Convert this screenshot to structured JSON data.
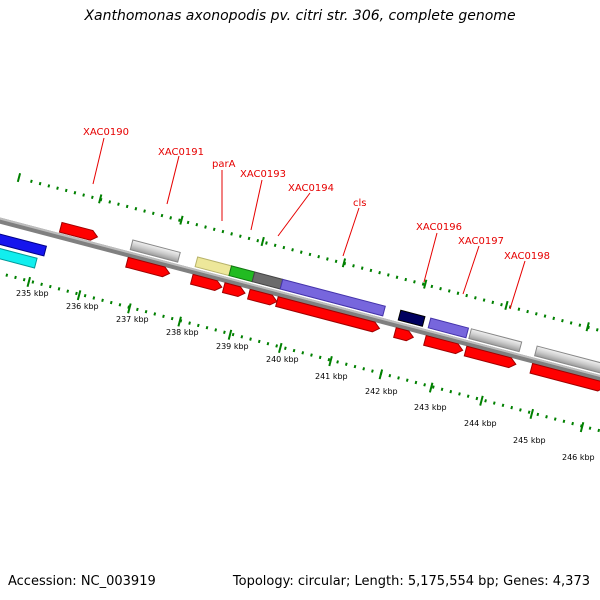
{
  "title": "Xanthomonas axonopodis pv. citri str. 306, complete genome",
  "footer": {
    "accession": "Accession: NC_003919",
    "summary": "Topology: circular; Length: 5,175,554 bp; Genes: 4,373"
  },
  "colors": {
    "backbone": "#808080",
    "ticks": "#008000",
    "labels": "#e60000",
    "cds": "#ff0000"
  },
  "scale": {
    "unit": "kbp",
    "labels": [
      "235 kbp",
      "236 kbp",
      "237 kbp",
      "238 kbp",
      "239 kbp",
      "240 kbp",
      "241 kbp",
      "242 kbp",
      "243 kbp",
      "244 kbp",
      "245 kbp",
      "246 kbp"
    ]
  },
  "gene_labels": [
    "XAC0190",
    "XAC0191",
    "parA",
    "XAC0193",
    "XAC0194",
    "cls",
    "XAC0196",
    "XAC0197",
    "XAC0198"
  ]
}
